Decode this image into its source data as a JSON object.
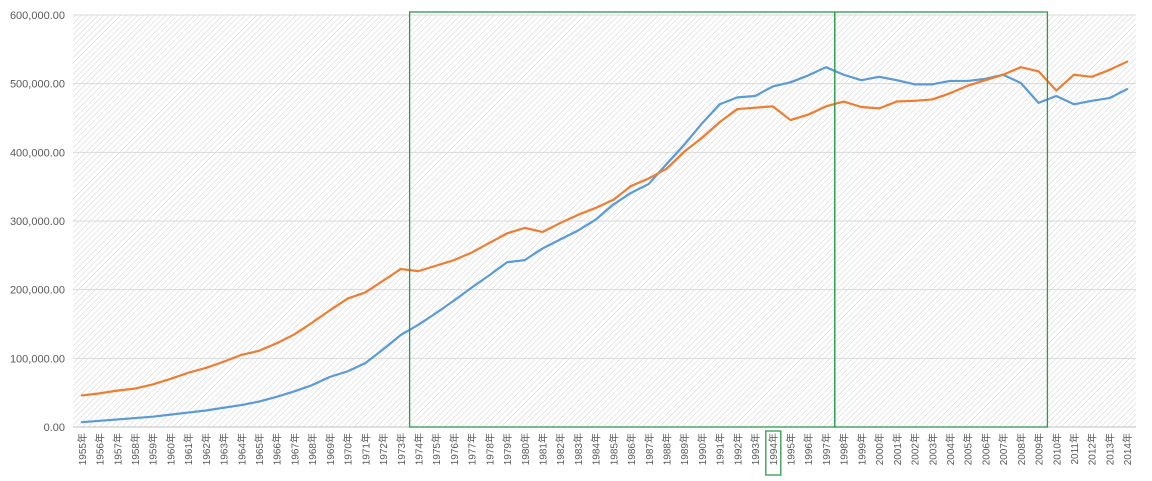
{
  "chart_data": {
    "type": "line",
    "title": "",
    "xlabel": "",
    "ylabel": "",
    "ylim": [
      0,
      600000
    ],
    "y_ticks": [
      "0.00",
      "100,000.00",
      "200,000.00",
      "300,000.00",
      "400,000.00",
      "500,000.00",
      "600,000.00"
    ],
    "grid": true,
    "legend": "none",
    "categories": [
      "1955年",
      "1956年",
      "1957年",
      "1958年",
      "1959年",
      "1960年",
      "1961年",
      "1962年",
      "1963年",
      "1964年",
      "1965年",
      "1966年",
      "1967年",
      "1968年",
      "1969年",
      "1970年",
      "1971年",
      "1972年",
      "1973年",
      "1974年",
      "1975年",
      "1976年",
      "1977年",
      "1978年",
      "1979年",
      "1980年",
      "1981年",
      "1982年",
      "1983年",
      "1984年",
      "1985年",
      "1986年",
      "1987年",
      "1988年",
      "1989年",
      "1990年",
      "1991年",
      "1992年",
      "1993年",
      "1994年",
      "1995年",
      "1996年",
      "1997年",
      "1998年",
      "1999年",
      "2000年",
      "2001年",
      "2002年",
      "2003年",
      "2004年",
      "2005年",
      "2006年",
      "2007年",
      "2008年",
      "2009年",
      "2010年",
      "2011年",
      "2012年",
      "2013年",
      "2014年"
    ],
    "series": [
      {
        "color": "#5b9bd5",
        "values": [
          7000,
          9000,
          11000,
          13000,
          15000,
          18000,
          21000,
          24000,
          28000,
          32000,
          37000,
          44000,
          52000,
          61000,
          73000,
          81000,
          93000,
          113000,
          134000,
          149000,
          166000,
          184000,
          203000,
          221000,
          240000,
          243000,
          260000,
          273000,
          286000,
          302000,
          324000,
          341000,
          354000,
          383000,
          411000,
          442000,
          470000,
          480000,
          482000,
          496000,
          502000,
          512000,
          524000,
          513000,
          505000,
          510000,
          505000,
          499000,
          499000,
          504000,
          504000,
          507000,
          513000,
          501000,
          472000,
          482000,
          470000,
          475000,
          479000,
          492000
        ]
      },
      {
        "color": "#ed7d31",
        "values": [
          46000,
          49000,
          53000,
          56000,
          62000,
          70000,
          79000,
          86000,
          95000,
          105000,
          111000,
          122000,
          135000,
          152000,
          170000,
          187000,
          196000,
          213000,
          230000,
          227000,
          235000,
          243000,
          254000,
          268000,
          282000,
          290000,
          284000,
          297000,
          309000,
          319000,
          331000,
          351000,
          362000,
          376000,
          401000,
          421000,
          444000,
          463000,
          465000,
          467000,
          447000,
          455000,
          467000,
          474000,
          466000,
          464000,
          474000,
          475000,
          477000,
          486000,
          497000,
          505000,
          513000,
          524000,
          518000,
          490000,
          513000,
          510000,
          520000,
          532000
        ]
      }
    ],
    "highlight_boxes": [
      {
        "from": "1974年",
        "to": "1998年",
        "color": "#2e9a4e"
      },
      {
        "from": "1998年",
        "to": "2010年",
        "color": "#2e9a4e"
      }
    ],
    "highlight_label": {
      "category": "1994年",
      "color": "#2e9a4e"
    }
  }
}
